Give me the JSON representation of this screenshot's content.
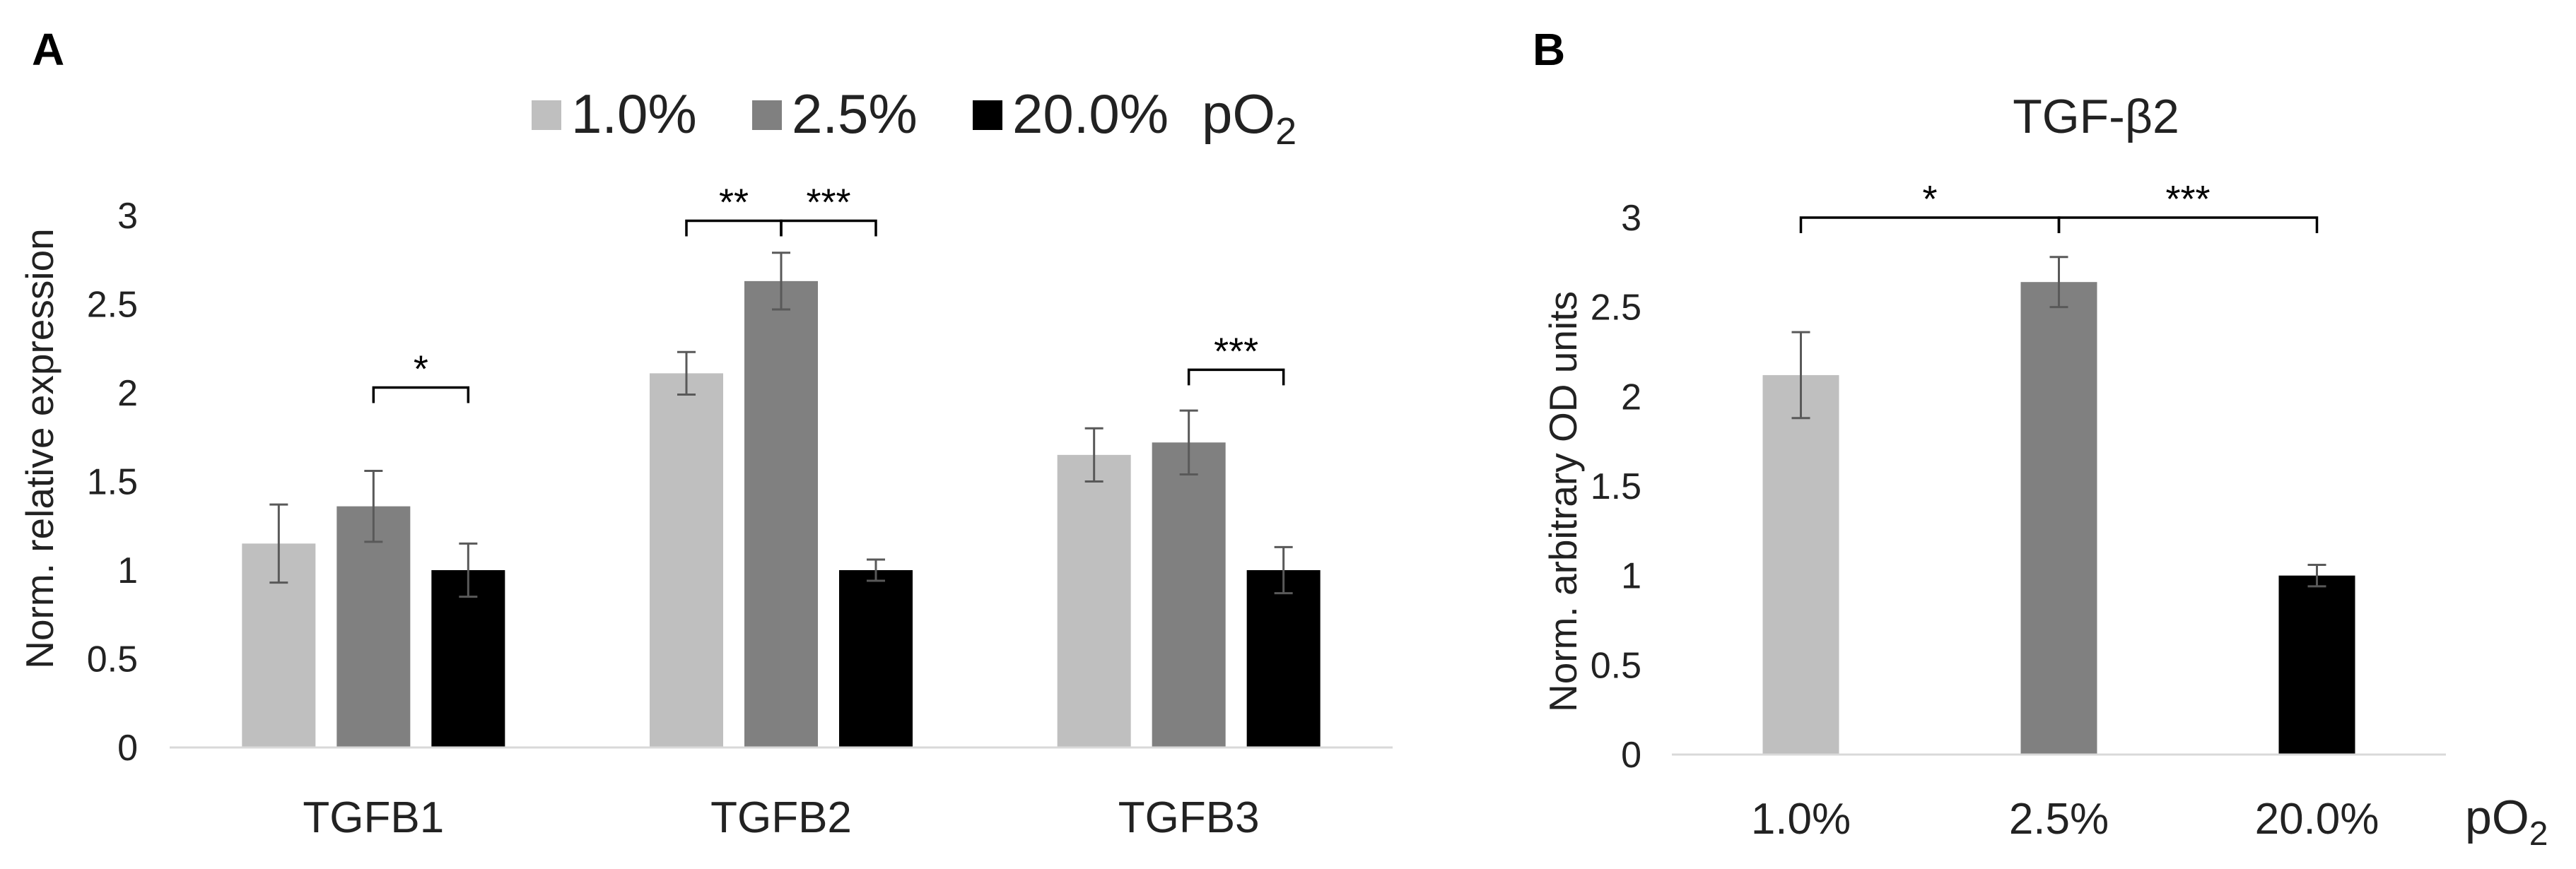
{
  "panels": {
    "a_label": "A",
    "b_label": "B"
  },
  "colors": {
    "c1": "#bfbfbf",
    "c2": "#808080",
    "c3": "#000000",
    "axis": "#d9d9d9",
    "text": "#222222",
    "err": "#595959"
  },
  "chart_data": [
    {
      "type": "bar",
      "panel": "A",
      "title": "",
      "xlabel": "",
      "ylabel": "Norm. relative expression",
      "ylim": [
        0,
        3
      ],
      "yticks": [
        "0",
        "0.5",
        "1",
        "1.5",
        "2",
        "2.5",
        "3"
      ],
      "grid": false,
      "legend": {
        "position": "top",
        "unit_prefix": "pO",
        "unit_sub": "2"
      },
      "categories": [
        "TGFB1",
        "TGFB2",
        "TGFB3"
      ],
      "series": [
        {
          "name": "1.0%",
          "values": [
            1.15,
            2.11,
            1.65
          ],
          "errors": [
            0.22,
            0.12,
            0.15
          ]
        },
        {
          "name": "2.5%",
          "values": [
            1.36,
            2.63,
            1.72
          ],
          "errors": [
            0.2,
            0.16,
            0.18
          ]
        },
        {
          "name": "20.0%",
          "values": [
            1.0,
            1.0,
            1.0
          ],
          "errors": [
            0.15,
            0.06,
            0.13
          ]
        }
      ],
      "significance": [
        {
          "category": 0,
          "from": 1,
          "to": 2,
          "label": "*",
          "level": 2.03
        },
        {
          "category": 1,
          "from": 0,
          "to": 1,
          "label": "**",
          "level": 2.97
        },
        {
          "category": 1,
          "from": 1,
          "to": 2,
          "label": "***",
          "level": 2.97
        },
        {
          "category": 2,
          "from": 1,
          "to": 2,
          "label": "***",
          "level": 2.13
        }
      ]
    },
    {
      "type": "bar",
      "panel": "B",
      "title": "TGF-β2",
      "xlabel": "",
      "ylabel": "Norm. arbitrary OD units",
      "ylim": [
        0,
        3
      ],
      "yticks": [
        "0",
        "0.5",
        "1",
        "1.5",
        "2",
        "2.5",
        "3"
      ],
      "grid": false,
      "categories": [
        "1.0%",
        "2.5%",
        "20.0%"
      ],
      "x_suffix": {
        "prefix": "pO",
        "sub": "2"
      },
      "values": [
        2.12,
        2.64,
        1.0
      ],
      "errors": [
        0.24,
        0.14,
        0.06
      ],
      "significance": [
        {
          "from": 0,
          "to": 1,
          "label": "*",
          "level": 3.0
        },
        {
          "from": 1,
          "to": 2,
          "label": "***",
          "level": 3.0
        }
      ]
    }
  ]
}
